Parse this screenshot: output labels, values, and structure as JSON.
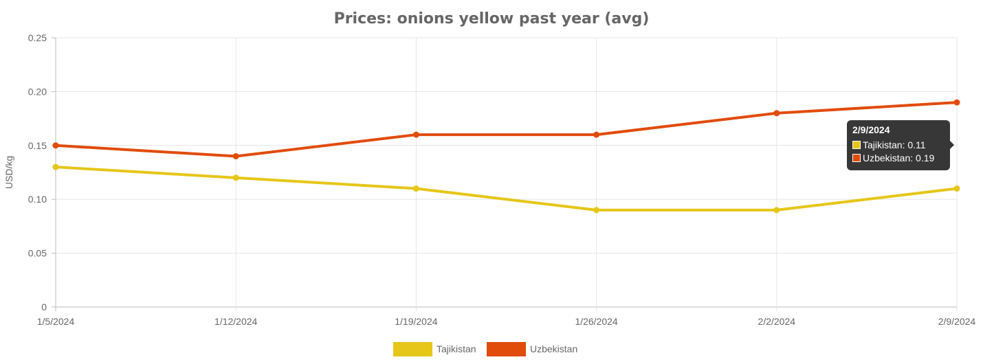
{
  "chart_data": {
    "type": "line",
    "title": "Prices: onions yellow past year (avg)",
    "xlabel": "",
    "ylabel": "USD/kg",
    "ylim": [
      0,
      0.25
    ],
    "yticks": [
      "0",
      "0.05",
      "0.10",
      "0.15",
      "0.20",
      "0.25"
    ],
    "ytick_values": [
      0,
      0.05,
      0.1,
      0.15,
      0.2,
      0.25
    ],
    "categories": [
      "1/5/2024",
      "1/12/2024",
      "1/19/2024",
      "1/26/2024",
      "2/2/2024",
      "2/9/2024"
    ],
    "grid": true,
    "legend_position": "bottom-center",
    "series": [
      {
        "name": "Tajikistan",
        "color": "#E6C619",
        "values": [
          0.13,
          0.12,
          0.11,
          0.09,
          0.09,
          0.11
        ]
      },
      {
        "name": "Uzbekistan",
        "color": "#E14C0A",
        "values": [
          0.15,
          0.14,
          0.16,
          0.16,
          0.18,
          0.19
        ]
      }
    ],
    "tooltip": {
      "title": "2/9/2024",
      "rows": [
        {
          "label": "Tajikistan: 0.11",
          "color": "#E6C619"
        },
        {
          "label": "Uzbekistan: 0.19",
          "color": "#E14C0A"
        }
      ]
    }
  }
}
